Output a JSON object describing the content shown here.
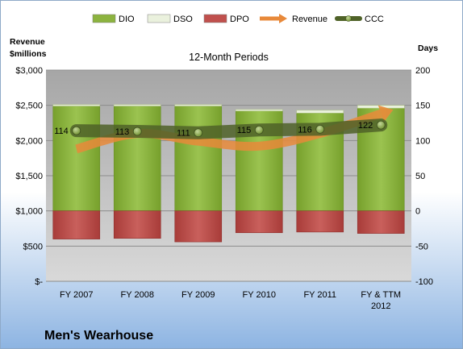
{
  "chart_data": {
    "type": "bar",
    "subtitle": "12-Month Periods",
    "company": "Men's Wearhouse",
    "categories": [
      [
        "FY 2007"
      ],
      [
        "FY 2008"
      ],
      [
        "FY 2009"
      ],
      [
        "FY 2010"
      ],
      [
        "FY 2011"
      ],
      [
        "FY & TTM",
        "2012"
      ]
    ],
    "left_axis": {
      "title_lines": [
        "Revenue",
        "$millions"
      ],
      "ticks": [
        "$-",
        "$500",
        "$1,000",
        "$1,500",
        "$2,000",
        "$2,500",
        "$3,000"
      ],
      "range": [
        0,
        3000
      ]
    },
    "right_axis": {
      "title": "Days",
      "ticks": [
        "-100",
        "-50",
        "0",
        "50",
        "100",
        "150",
        "200"
      ],
      "range": [
        -100,
        200
      ]
    },
    "legend": [
      {
        "name": "DIO",
        "color": "#8CB33F"
      },
      {
        "name": "DSO",
        "color": "#EAF1DD"
      },
      {
        "name": "DPO",
        "color": "#C0504D"
      },
      {
        "name": "Revenue",
        "color": "#E8893A"
      },
      {
        "name": "CCC",
        "color": "#4F6228"
      }
    ],
    "series": [
      {
        "name": "DIO",
        "axis": "days",
        "values": [
          149,
          149,
          149,
          142,
          139,
          146
        ]
      },
      {
        "name": "DSO",
        "axis": "days",
        "values": [
          2,
          2,
          2,
          2,
          4,
          4
        ]
      },
      {
        "name": "DPO",
        "axis": "days",
        "values": [
          -40,
          -39,
          -44,
          -31,
          -30,
          -32
        ]
      },
      {
        "name": "Revenue",
        "axis": "revenue",
        "values": [
          1880,
          2100,
          1990,
          1920,
          2100,
          2380
        ]
      },
      {
        "name": "CCC",
        "axis": "days",
        "values": [
          114,
          113,
          111,
          115,
          116,
          122
        ],
        "labels": [
          "114",
          "113",
          "111",
          "115",
          "116",
          "122"
        ]
      }
    ]
  }
}
